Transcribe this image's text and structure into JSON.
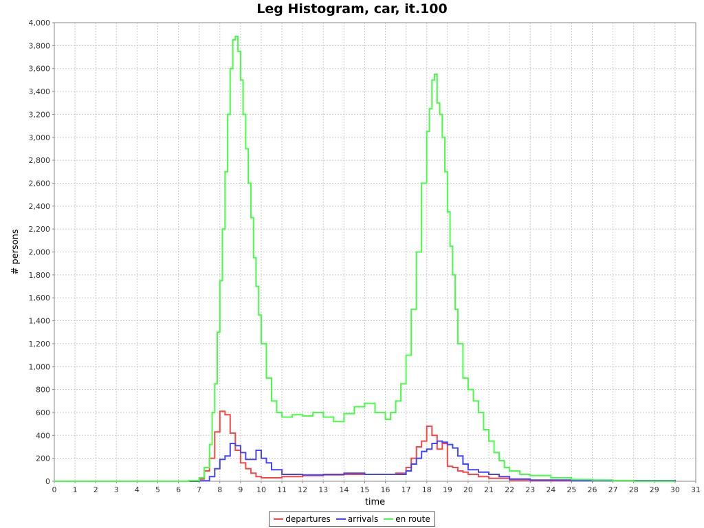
{
  "chart_data": {
    "type": "line",
    "title": "Leg Histogram, car, it.100",
    "xlabel": "time",
    "ylabel": "# persons",
    "xlim": [
      0,
      31
    ],
    "ylim": [
      0,
      4000
    ],
    "x_ticks": [
      "0",
      "1",
      "2",
      "3",
      "4",
      "5",
      "6",
      "7",
      "8",
      "9",
      "10",
      "11",
      "12",
      "13",
      "14",
      "15",
      "16",
      "17",
      "18",
      "19",
      "20",
      "21",
      "22",
      "23",
      "24",
      "25",
      "26",
      "27",
      "28",
      "29",
      "30",
      "31"
    ],
    "y_ticks": [
      "0",
      "200",
      "400",
      "600",
      "800",
      "1,000",
      "1,200",
      "1,400",
      "1,600",
      "1,800",
      "2,000",
      "2,200",
      "2,400",
      "2,600",
      "2,800",
      "3,000",
      "3,200",
      "3,400",
      "3,600",
      "3,800",
      "4,000"
    ],
    "y_tick_values": [
      0,
      200,
      400,
      600,
      800,
      1000,
      1200,
      1400,
      1600,
      1800,
      2000,
      2200,
      2400,
      2600,
      2800,
      3000,
      3200,
      3400,
      3600,
      3800,
      4000
    ],
    "grid": true,
    "legend_position": "bottom",
    "series": [
      {
        "name": "departures",
        "color": "#ff4444",
        "x": [
          0,
          6.5,
          7,
          7.25,
          7.5,
          7.75,
          8,
          8.25,
          8.5,
          8.75,
          9,
          9.25,
          9.5,
          9.75,
          10,
          10.5,
          11,
          12,
          13,
          14,
          15,
          16,
          16.5,
          17,
          17.25,
          17.5,
          17.75,
          18,
          18.25,
          18.5,
          18.75,
          19,
          19.25,
          19.5,
          19.75,
          20,
          20.5,
          21,
          22,
          23,
          30
        ],
        "y": [
          0,
          5,
          20,
          90,
          200,
          430,
          610,
          580,
          420,
          270,
          160,
          110,
          70,
          40,
          30,
          30,
          40,
          50,
          55,
          60,
          60,
          60,
          70,
          120,
          200,
          300,
          350,
          480,
          400,
          280,
          330,
          130,
          120,
          90,
          80,
          60,
          40,
          25,
          10,
          5,
          0
        ]
      },
      {
        "name": "arrivals",
        "color": "#4444ff",
        "x": [
          0,
          7,
          7.5,
          7.75,
          8,
          8.25,
          8.5,
          8.75,
          9,
          9.25,
          9.5,
          9.75,
          10,
          10.25,
          10.5,
          11,
          12,
          13,
          14,
          15,
          16,
          16.5,
          17,
          17.25,
          17.5,
          17.75,
          18,
          18.25,
          18.5,
          18.75,
          19,
          19.25,
          19.5,
          19.75,
          20,
          20.5,
          21,
          21.5,
          22,
          23,
          25,
          30
        ],
        "y": [
          0,
          5,
          40,
          110,
          190,
          220,
          330,
          310,
          250,
          190,
          190,
          270,
          200,
          160,
          100,
          60,
          55,
          60,
          70,
          60,
          60,
          60,
          90,
          150,
          200,
          260,
          280,
          330,
          350,
          340,
          320,
          290,
          220,
          150,
          100,
          80,
          60,
          40,
          20,
          10,
          5,
          0
        ]
      },
      {
        "name": "en route",
        "color": "#44ff44",
        "x": [
          0,
          6.5,
          7,
          7.25,
          7.5,
          7.625,
          7.75,
          7.875,
          8,
          8.125,
          8.25,
          8.375,
          8.5,
          8.625,
          8.75,
          8.875,
          9,
          9.125,
          9.25,
          9.375,
          9.5,
          9.625,
          9.75,
          9.875,
          10,
          10.25,
          10.5,
          10.75,
          11,
          11.5,
          12,
          12.5,
          13,
          13.5,
          14,
          14.5,
          15,
          15.5,
          16,
          16.25,
          16.5,
          16.75,
          17,
          17.25,
          17.5,
          17.75,
          18,
          18.125,
          18.25,
          18.375,
          18.5,
          18.625,
          18.75,
          18.875,
          19,
          19.125,
          19.25,
          19.375,
          19.5,
          19.75,
          20,
          20.25,
          20.5,
          20.75,
          21,
          21.25,
          21.5,
          21.75,
          22,
          22.5,
          23,
          24,
          25,
          26,
          27,
          28,
          30
        ],
        "y": [
          0,
          5,
          30,
          120,
          320,
          600,
          850,
          1300,
          1750,
          2200,
          2700,
          3200,
          3600,
          3850,
          3880,
          3750,
          3500,
          3200,
          2900,
          2600,
          2300,
          1950,
          1700,
          1450,
          1200,
          900,
          700,
          600,
          560,
          580,
          570,
          600,
          560,
          520,
          590,
          650,
          680,
          600,
          540,
          600,
          700,
          850,
          1100,
          1500,
          2000,
          2600,
          3050,
          3250,
          3500,
          3550,
          3300,
          3200,
          3000,
          2700,
          2350,
          2050,
          1800,
          1500,
          1200,
          900,
          800,
          700,
          600,
          450,
          350,
          250,
          180,
          120,
          90,
          60,
          50,
          30,
          15,
          10,
          5,
          0,
          0
        ]
      }
    ]
  }
}
